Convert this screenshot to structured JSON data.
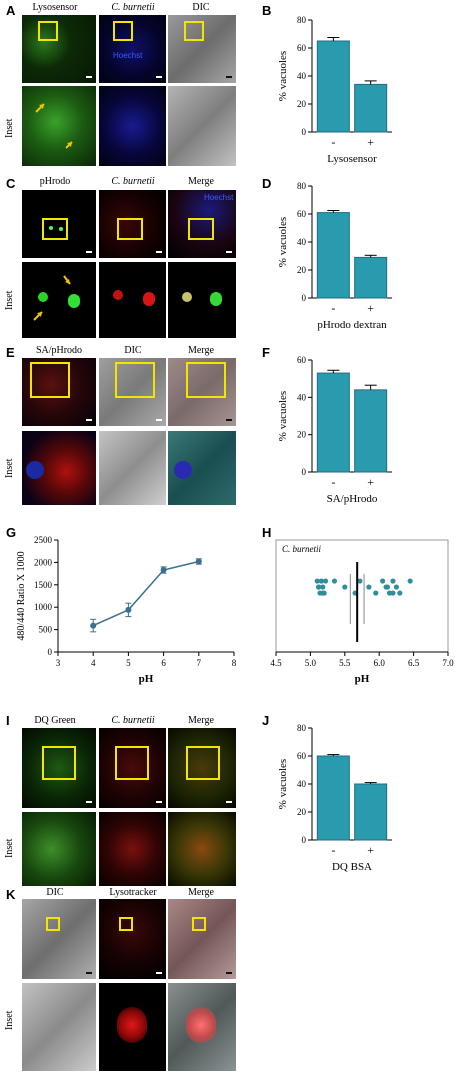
{
  "panels": {
    "A": {
      "letter": "A",
      "cols": [
        "Lysosensor",
        "C. burnetii",
        "DIC"
      ],
      "inset": "Inset",
      "overlay": "Hoechst"
    },
    "B": {
      "letter": "B"
    },
    "C": {
      "letter": "C",
      "cols": [
        "pHrodo",
        "C. burnetii",
        "Merge"
      ],
      "inset": "Inset",
      "overlay": "Hoechst"
    },
    "D": {
      "letter": "D"
    },
    "E": {
      "letter": "E",
      "cols": [
        "SA/pHrodo",
        "DIC",
        "Merge"
      ],
      "inset": "Inset"
    },
    "F": {
      "letter": "F"
    },
    "G": {
      "letter": "G"
    },
    "H": {
      "letter": "H"
    },
    "I": {
      "letter": "I",
      "cols": [
        "DQ Green",
        "C. burnetii",
        "Merge"
      ],
      "inset": "Inset"
    },
    "J": {
      "letter": "J"
    },
    "K": {
      "letter": "K",
      "cols": [
        "DIC",
        "Lysotracker",
        "Merge"
      ],
      "inset": "Inset"
    }
  },
  "colors": {
    "bar": "#2a9aaf",
    "bar_edge": "#1f6f80",
    "point": "#2e8e9c",
    "line": "#3b6e8f",
    "yellow": "#f2e600"
  },
  "chart_data": [
    {
      "id": "B",
      "type": "bar",
      "categories": [
        "-",
        "+"
      ],
      "values": [
        65,
        34
      ],
      "errors": [
        2.5,
        2.5
      ],
      "ylabel": "% vacuoles",
      "xlabel": "Lysosensor",
      "ylim": [
        0,
        80
      ],
      "yticks": [
        0,
        20,
        40,
        60,
        80
      ]
    },
    {
      "id": "D",
      "type": "bar",
      "categories": [
        "-",
        "+"
      ],
      "values": [
        61,
        29
      ],
      "errors": [
        1.5,
        1.5
      ],
      "ylabel": "% vacuoles",
      "xlabel": "pHrodo dextran",
      "ylim": [
        0,
        80
      ],
      "yticks": [
        0,
        20,
        40,
        60,
        80
      ]
    },
    {
      "id": "F",
      "type": "bar",
      "categories": [
        "-",
        "+"
      ],
      "values": [
        53,
        44
      ],
      "errors": [
        1.5,
        2.5
      ],
      "ylabel": "% vacuoles",
      "xlabel": "SA/pHrodo",
      "ylim": [
        0,
        60
      ],
      "yticks": [
        0,
        20,
        40,
        60
      ]
    },
    {
      "id": "G",
      "type": "line",
      "x": [
        4,
        5,
        6,
        7
      ],
      "y": [
        590,
        940,
        1830,
        2020
      ],
      "errors": [
        140,
        150,
        70,
        60
      ],
      "xlabel": "pH",
      "ylabel": "480/440 Ratio X 1000",
      "xlim": [
        3,
        8
      ],
      "ylim": [
        0,
        2500
      ],
      "xticks": [
        3,
        4,
        5,
        6,
        7,
        8
      ],
      "yticks": [
        0,
        500,
        1000,
        1500,
        2000,
        2500
      ]
    },
    {
      "id": "H",
      "type": "scatter",
      "series": [
        {
          "name": "C. burnetii",
          "x": [
            5.1,
            5.12,
            5.14,
            5.16,
            5.18,
            5.2,
            5.22,
            5.12,
            5.18,
            5.35,
            5.5,
            5.65,
            5.72,
            5.85,
            5.95,
            6.05,
            6.1,
            6.15,
            6.2,
            6.25,
            6.3,
            6.45,
            6.12,
            6.2
          ]
        }
      ],
      "mean": 5.68,
      "sd_low": 5.58,
      "sd_high": 5.78,
      "xlabel": "pH",
      "xlim": [
        4.5,
        7.0
      ],
      "xticks": [
        "4.5",
        "5.0",
        "5.5",
        "6.0",
        "6.5",
        "7.0"
      ]
    },
    {
      "id": "J",
      "type": "bar",
      "categories": [
        "-",
        "+"
      ],
      "values": [
        60,
        40
      ],
      "errors": [
        1,
        1
      ],
      "ylabel": "% vacuoles",
      "xlabel": "DQ BSA",
      "ylim": [
        0,
        80
      ],
      "yticks": [
        0,
        20,
        40,
        60,
        80
      ]
    }
  ]
}
